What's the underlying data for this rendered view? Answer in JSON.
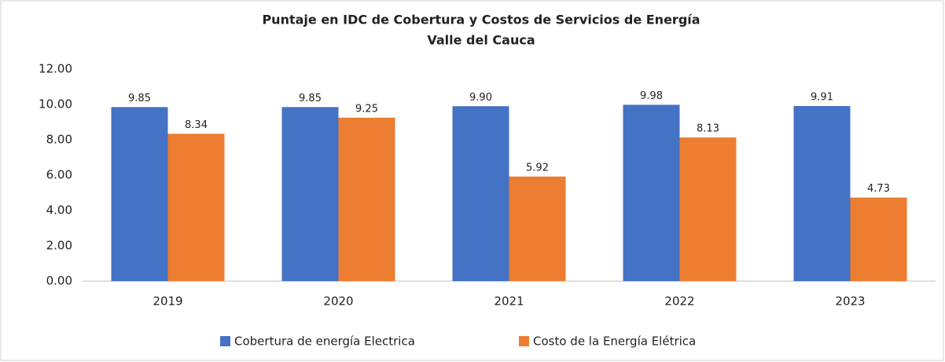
{
  "chart_data": {
    "type": "bar",
    "title": "Puntaje en IDC de Cobertura y Costos de Servicios de Energía",
    "subtitle": "Valle del Cauca",
    "categories": [
      "2019",
      "2020",
      "2021",
      "2022",
      "2023"
    ],
    "series": [
      {
        "name": "Cobertura de energía Electrica",
        "color": "#4472c4",
        "values": [
          9.85,
          9.85,
          9.9,
          9.98,
          9.91
        ],
        "value_labels": [
          "9.85",
          "9.85",
          "9.90",
          "9.98",
          "9.91"
        ]
      },
      {
        "name": "Costo de la Energía Elétrica",
        "color": "#ed7d31",
        "values": [
          8.34,
          9.25,
          5.92,
          8.13,
          4.73
        ],
        "value_labels": [
          "8.34",
          "9.25",
          "5.92",
          "8.13",
          "4.73"
        ]
      }
    ],
    "ylim": [
      0,
      12
    ],
    "yticks": [
      {
        "value": 0,
        "label": "0.00"
      },
      {
        "value": 2,
        "label": "2.00"
      },
      {
        "value": 4,
        "label": "4.00"
      },
      {
        "value": 6,
        "label": "6.00"
      },
      {
        "value": 8,
        "label": "8.00"
      },
      {
        "value": 10,
        "label": "10.00"
      },
      {
        "value": 12,
        "label": "12.00"
      }
    ],
    "grid": false,
    "legend": "bottom"
  }
}
